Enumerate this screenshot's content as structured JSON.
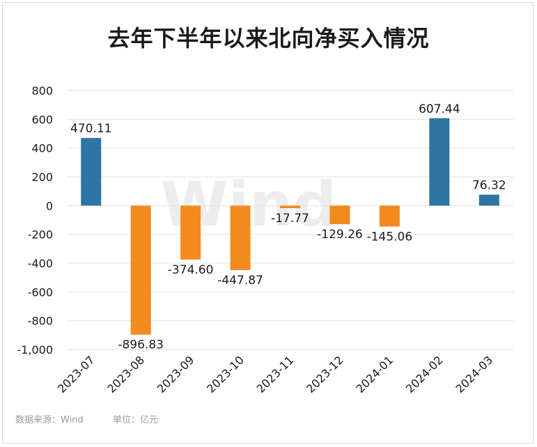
{
  "title": "去年下半年以来北向净买入情况",
  "watermark": "Wind",
  "footer": {
    "source": "数据来源：Wind",
    "unit": "单位：亿元"
  },
  "colors": {
    "positive": "#2e75a3",
    "negative": "#f28a1f",
    "grid": "#e3e3e3",
    "text": "#1a1a1a"
  },
  "chart_data": {
    "type": "bar",
    "title": "去年下半年以来北向净买入情况",
    "categories": [
      "2023-07",
      "2023-08",
      "2023-09",
      "2023-10",
      "2023-11",
      "2023-12",
      "2024-01",
      "2024-02",
      "2024-03"
    ],
    "values": [
      470.11,
      -896.83,
      -374.6,
      -447.87,
      -17.77,
      -129.26,
      -145.06,
      607.44,
      76.32
    ],
    "value_labels": [
      "470.11",
      "-896.83",
      "-374.60",
      "-447.87",
      "-17.77",
      "-129.26",
      "-145.06",
      "607.44",
      "76.32"
    ],
    "ylim": [
      -1000,
      800
    ],
    "yticks": [
      800,
      600,
      400,
      200,
      0,
      -200,
      -400,
      -600,
      -800,
      -1000
    ],
    "ytick_labels": [
      "800",
      "600",
      "400",
      "200",
      "0",
      "-200",
      "-400",
      "-600",
      "-800",
      "-1,000"
    ],
    "grid": true,
    "xlabel": "",
    "ylabel": ""
  }
}
